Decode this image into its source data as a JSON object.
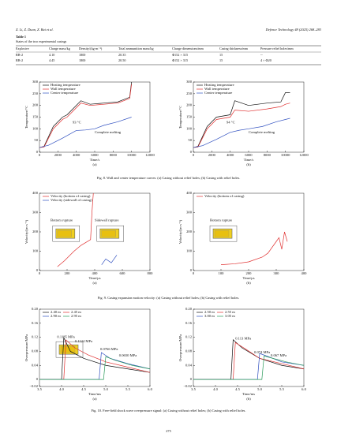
{
  "header": {
    "authors": "Z. Li, Z. Duan, Z. Bai et al.",
    "journal": "Defence Technology 48 (2025) 268–283"
  },
  "table": {
    "label": "Table 1",
    "caption": "States of the two experimental casings",
    "columns": [
      "Explosive",
      "Charge mass/kg",
      "Density/(kg·m⁻³)",
      "Total ammunition mass/kg",
      "Charge dimensions/mm",
      "Casing thickness/mm",
      "Pressure relief holes/mm"
    ],
    "rows": [
      [
        "RB-2",
        "4.10",
        "1800",
        "20.35",
        "Φ152 × 315",
        "15",
        "--"
      ],
      [
        "RB-2",
        "4.45",
        "1800",
        "20.50",
        "Φ152 × 315",
        "15",
        "4 × Φ20"
      ]
    ]
  },
  "figures": [
    {
      "caption": "Fig. 8. Wall and center temperature curves: (a) Casing without relief holes; (b) Casing with relief holes.",
      "panels": [
        {
          "type": "line",
          "sublabel": "(a)",
          "xlabel": "Time/s",
          "ylabel": "Temperature/°C",
          "xlim": [
            0,
            12000
          ],
          "xticks": [
            0,
            2000,
            4000,
            6000,
            8000,
            10000,
            12000
          ],
          "ylim": [
            0,
            300
          ],
          "yticks": [
            0,
            50,
            100,
            150,
            200,
            250,
            300
          ],
          "legend": "upper left",
          "series": [
            {
              "name": "Heating temperature",
              "color": "#111111",
              "x": [
                0,
                500,
                1500,
                2500,
                3000,
                4500,
                5500,
                7000,
                8500,
                9800,
                10000
              ],
              "values": [
                20,
                25,
                110,
                150,
                160,
                220,
                205,
                210,
                215,
                235,
                300
              ]
            },
            {
              "name": "Wall temperature",
              "color": "#e03030",
              "x": [
                0,
                500,
                1500,
                2500,
                3000,
                4500,
                5500,
                7000,
                8500,
                9800,
                10000
              ],
              "values": [
                20,
                22,
                100,
                140,
                150,
                210,
                200,
                205,
                210,
                230,
                290
              ]
            },
            {
              "name": "Center temperature",
              "color": "#3050c0",
              "x": [
                0,
                1000,
                2500,
                4000,
                5000,
                6000,
                7000,
                8500,
                10000
              ],
              "values": [
                20,
                30,
                60,
                93,
                95,
                100,
                115,
                130,
                150
              ]
            }
          ],
          "annotations": [
            "93 °C",
            "Complete melting"
          ]
        },
        {
          "type": "line",
          "sublabel": "(b)",
          "xlabel": "Time/s",
          "ylabel": "Temperature/°C",
          "xlim": [
            0,
            12000
          ],
          "xticks": [
            0,
            2000,
            4000,
            6000,
            8000,
            10000,
            12000
          ],
          "ylim": [
            0,
            300
          ],
          "yticks": [
            0,
            50,
            100,
            150,
            200,
            250,
            300
          ],
          "legend": "upper left",
          "series": [
            {
              "name": "Heating temperature",
              "color": "#111111",
              "x": [
                0,
                500,
                1500,
                2500,
                4000,
                4500,
                6000,
                8000,
                9500,
                10000,
                10500
              ],
              "values": [
                20,
                25,
                110,
                150,
                160,
                220,
                200,
                210,
                215,
                255,
                255
              ]
            },
            {
              "name": "Wall temperature",
              "color": "#e03030",
              "x": [
                0,
                500,
                1500,
                2500,
                4000,
                4500,
                6000,
                8000,
                9500,
                10000,
                10500
              ],
              "values": [
                20,
                22,
                100,
                140,
                150,
                180,
                175,
                185,
                195,
                205,
                210
              ]
            },
            {
              "name": "Center temperature",
              "color": "#3050c0",
              "x": [
                0,
                1000,
                2500,
                4000,
                5000,
                6000,
                7500,
                9000,
                10500
              ],
              "values": [
                20,
                28,
                55,
                85,
                94,
                100,
                110,
                130,
                145
              ]
            }
          ],
          "annotations": [
            "94 °C",
            "Complete melting"
          ]
        }
      ]
    },
    {
      "caption": "Fig. 9. Casing expansion motion velocity: (a) Casing without relief holes; (b) Casing with relief holes.",
      "panels": [
        {
          "type": "line",
          "sublabel": "(a)",
          "xlabel": "Time/μs",
          "ylabel": "Velocity/(m·s⁻¹)",
          "xlim": [
            0,
            800
          ],
          "xticks": [
            0,
            200,
            400,
            600,
            800
          ],
          "ylim": [
            0,
            400
          ],
          "yticks": [
            0,
            100,
            200,
            300,
            400
          ],
          "legend": "upper left",
          "series": [
            {
              "name": "Velocity (bottom of casing)",
              "color": "#e03030",
              "x": [
                130,
                180,
                250,
                300,
                370,
                380,
                390
              ],
              "values": [
                20,
                50,
                100,
                130,
                160,
                300,
                400
              ]
            },
            {
              "name": "Velocity (sidewall of casing)",
              "color": "#3050c0",
              "x": [
                450,
                480,
                520,
                560
              ],
              "values": [
                30,
                60,
                40,
                80
              ]
            }
          ],
          "annotations": [
            "Bottom rupture",
            "Sidewall rupture"
          ]
        },
        {
          "type": "line",
          "sublabel": "(b)",
          "xlabel": "Time/μs",
          "ylabel": "Velocity/(m·s⁻¹)",
          "xlim": [
            0,
            400
          ],
          "xticks": [
            0,
            100,
            200,
            300,
            400
          ],
          "ylim": [
            0,
            400
          ],
          "yticks": [
            0,
            100,
            200,
            300,
            400
          ],
          "legend": "upper left",
          "series": [
            {
              "name": "Velocity (bottom of casing)",
              "color": "#e03030",
              "x": [
                100,
                150,
                200,
                250,
                270,
                300,
                310,
                320,
                330,
                340
              ],
              "values": [
                30,
                35,
                45,
                70,
                90,
                150,
                170,
                110,
                200,
                150
              ]
            }
          ],
          "annotations": [
            "Bottom rupture"
          ]
        }
      ]
    },
    {
      "caption": "Fig. 10. Free-field shock wave overpressure signal: (a) Casing without relief holes; (b) Casing with relief holes.",
      "panels": [
        {
          "type": "line",
          "sublabel": "(a)",
          "xlabel": "Time/ms",
          "ylabel": "Overpressure/MPa",
          "xlim": [
            3.5,
            6
          ],
          "xticks": [
            3.5,
            {
              "value": 4,
              "label": "4.0"
            },
            4.5,
            {
              "value": 5,
              "label": "5.0"
            },
            5.5,
            {
              "value": 6,
              "label": "6.0"
            }
          ],
          "ylim": [
            -0.02,
            0.2
          ],
          "yticks": [
            {
              "value": -0.02,
              "label": "−0.02"
            },
            0,
            0.04,
            0.08,
            0.12,
            0.16,
            {
              "value": 0.2,
              "label": "0.20"
            }
          ],
          "legend": "upper left",
          "series": [
            {
              "name": "2.40 m",
              "color": "#111111",
              "x": [
                3.5,
                3.95,
                4.0,
                4.05,
                4.2,
                4.5,
                5.0,
                5.5,
                6.0
              ],
              "values": [
                0,
                0,
                0,
                0.1185,
                0.08,
                0.06,
                0.04,
                0.03,
                0.02
              ]
            },
            {
              "name": "2.45 m",
              "color": "#e03030",
              "x": [
                3.5,
                4.0,
                4.05,
                4.1,
                4.3,
                4.6,
                5.0,
                5.5,
                6.0
              ],
              "values": [
                0,
                0,
                0,
                0.1124,
                0.09,
                0.07,
                0.05,
                0.035,
                0.02
              ]
            },
            {
              "name": "2.90 m",
              "color": "#3050c0",
              "x": [
                3.5,
                4.8,
                4.85,
                4.9,
                5.1,
                5.5,
                6.0
              ],
              "values": [
                0,
                0,
                0,
                0.0766,
                0.06,
                0.045,
                0.03
              ]
            },
            {
              "name": "2.95 m",
              "color": "#2a9a5a",
              "x": [
                3.5,
                4.9,
                4.95,
                5.0,
                5.2,
                5.6,
                6.0
              ],
              "values": [
                0,
                0,
                0,
                0.065,
                0.055,
                0.04,
                0.03
              ]
            }
          ],
          "annotations": [
            "0.1185 MPa",
            "0.1124 MPa",
            "0.0766 MPa",
            "0.0650 MPa"
          ]
        },
        {
          "type": "line",
          "sublabel": "(b)",
          "xlabel": "Time/ms",
          "ylabel": "Overpressure/MPa",
          "xlim": [
            3.5,
            6
          ],
          "xticks": [
            3.5,
            {
              "value": 4,
              "label": "4.0"
            },
            4.5,
            {
              "value": 5,
              "label": "5.0"
            },
            5.5,
            {
              "value": 6,
              "label": "6.0"
            }
          ],
          "ylim": [
            -0.02,
            0.2
          ],
          "yticks": [
            {
              "value": -0.02,
              "label": "−0.02"
            },
            0,
            0.04,
            0.08,
            0.12,
            0.16,
            {
              "value": 0.2,
              "label": "0.20"
            }
          ],
          "legend": "upper left",
          "series": [
            {
              "name": "2.50 m",
              "color": "#111111",
              "x": [
                3.5,
                4.35,
                4.4,
                4.6,
                5.0,
                5.5,
                6.0
              ],
              "values": [
                0,
                0,
                0.113,
                0.09,
                0.06,
                0.04,
                0.03
              ]
            },
            {
              "name": "2.55 m",
              "color": "#e03030",
              "x": [
                3.5,
                4.4,
                4.45,
                4.7,
                5.0,
                5.5,
                6.0
              ],
              "values": [
                0,
                0,
                0.105,
                0.085,
                0.06,
                0.045,
                0.03
              ]
            },
            {
              "name": "3.00 m",
              "color": "#3050c0",
              "x": [
                3.5,
                4.95,
                5.0,
                5.2,
                5.5,
                6.0
              ],
              "values": [
                0,
                0,
                0.074,
                0.065,
                0.05,
                0.04
              ]
            },
            {
              "name": "3.05 m",
              "color": "#2a9a5a",
              "x": [
                3.5,
                5.05,
                5.1,
                5.3,
                5.6,
                6.0
              ],
              "values": [
                0,
                0,
                0.067,
                0.06,
                0.05,
                0.04
              ]
            }
          ],
          "annotations": [
            "0.113 MPa",
            "0.074 MPa",
            "0.067 MPa"
          ]
        }
      ]
    }
  ],
  "page_number": "275"
}
